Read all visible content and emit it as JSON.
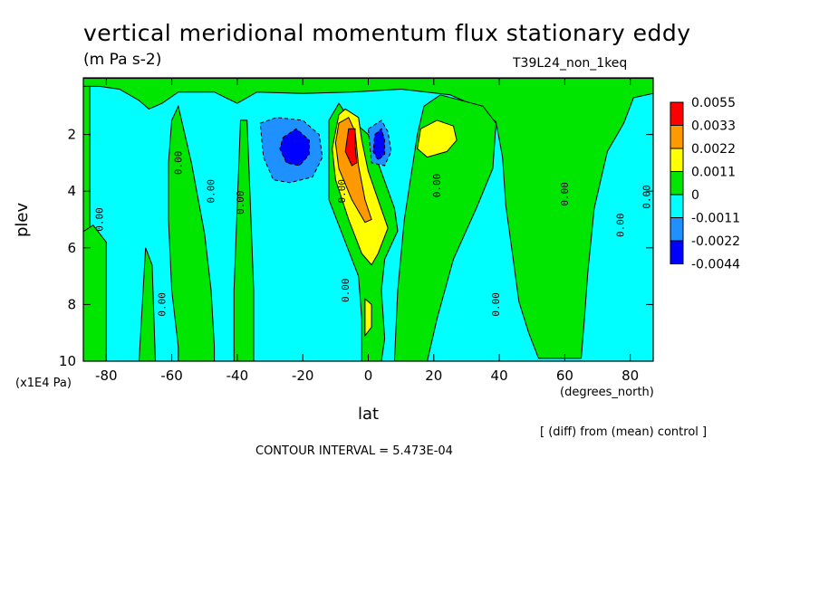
{
  "title": "vertical meridional momentum flux stationary eddy",
  "units": "(m Pa s-2)",
  "run_label": "T39L24_non_1keq",
  "x_axis_label": "lat",
  "x_axis_units": "(degrees_north)",
  "y_axis_label": "plev",
  "y_axis_units": "(x1E4 Pa)",
  "diff_note": "[ (diff) from (mean) control ]",
  "contour_interval": "CONTOUR INTERVAL = 5.473E-04",
  "contour_zero_label": "0.00",
  "chart_data": {
    "type": "heatmap",
    "title": "vertical meridional momentum flux stationary eddy",
    "subtitle": "(m Pa s-2)",
    "xlabel": "lat",
    "ylabel": "plev",
    "xlim": [
      -87,
      87
    ],
    "ylim": [
      0,
      10
    ],
    "y_inverted": true,
    "x_ticks": [
      -80,
      -60,
      -40,
      -20,
      0,
      20,
      40,
      60,
      80
    ],
    "x_tick_labels": [
      "-80",
      "-60",
      "-40",
      "-20",
      "0",
      "20",
      "40",
      "60",
      "80"
    ],
    "y_ticks": [
      2,
      4,
      6,
      8,
      10
    ],
    "y_tick_labels": [
      "2",
      "4",
      "6",
      "8",
      "10"
    ],
    "colorbar": {
      "position": "right",
      "levels": [
        "0.0055",
        "0.0033",
        "0.0022",
        "0.0011",
        "0",
        "-0.0011",
        "-0.0022",
        "-0.0044"
      ],
      "colors": [
        "#ff0000",
        "#ff9900",
        "#ffff00",
        "#00e600",
        "#00ffff",
        "#1e90ff",
        "#0000ff"
      ]
    },
    "background_color": "#00ffff",
    "regions": [
      {
        "level": "0",
        "color": "#00e600",
        "points": [
          [
            -87,
            0.02
          ],
          [
            -60,
            0.02
          ],
          [
            -30,
            0.02
          ],
          [
            0,
            0.02
          ],
          [
            30,
            0.02
          ],
          [
            60,
            0.02
          ],
          [
            87,
            0.02
          ],
          [
            87,
            0.55
          ],
          [
            81,
            0.7
          ],
          [
            78,
            1.6
          ],
          [
            73,
            2.6
          ],
          [
            69,
            4.6
          ],
          [
            67,
            6.9
          ],
          [
            66,
            8.5
          ],
          [
            65,
            9.9
          ],
          [
            52,
            9.9
          ],
          [
            49,
            9
          ],
          [
            46,
            7.9
          ],
          [
            44,
            6.2
          ],
          [
            42,
            4.5
          ],
          [
            41,
            2.8
          ],
          [
            39,
            1.55
          ],
          [
            33,
            1.0
          ],
          [
            25,
            0.6
          ],
          [
            10,
            0.4
          ],
          [
            -5,
            0.5
          ],
          [
            -20,
            0.55
          ],
          [
            -34,
            0.5
          ],
          [
            -40,
            0.9
          ],
          [
            -47,
            0.5
          ],
          [
            -58,
            0.5
          ],
          [
            -63,
            0.9
          ],
          [
            -67,
            1.1
          ],
          [
            -70,
            0.8
          ],
          [
            -76,
            0.4
          ],
          [
            -82,
            0.3
          ],
          [
            -87,
            0.3
          ]
        ]
      },
      {
        "level": "0",
        "color": "#00e600",
        "points": [
          [
            -87,
            0.3
          ],
          [
            -85,
            0.3
          ],
          [
            -85,
            10
          ],
          [
            -87,
            10
          ]
        ]
      },
      {
        "level": "0",
        "color": "#00e600",
        "points": [
          [
            -88,
            5.5
          ],
          [
            -84,
            5.2
          ],
          [
            -80,
            5.8
          ],
          [
            -80,
            10
          ],
          [
            -88,
            10
          ]
        ]
      },
      {
        "level": "0",
        "color": "#00e600",
        "points": [
          [
            -68,
            6.0
          ],
          [
            -66,
            6.6
          ],
          [
            -65,
            10
          ],
          [
            -70,
            10
          ]
        ]
      },
      {
        "level": "0",
        "color": "#00e600",
        "points": [
          [
            -58,
            1.0
          ],
          [
            -54,
            3.0
          ],
          [
            -50,
            5.5
          ],
          [
            -48,
            7.5
          ],
          [
            -47,
            9.5
          ],
          [
            -47,
            10
          ],
          [
            -58,
            10
          ],
          [
            -58,
            9.5
          ],
          [
            -60,
            7.5
          ],
          [
            -61,
            5.0
          ],
          [
            -61,
            3.0
          ],
          [
            -60,
            1.5
          ]
        ]
      },
      {
        "level": "0",
        "color": "#00e600",
        "points": [
          [
            -37,
            1.5
          ],
          [
            -36,
            4.5
          ],
          [
            -35,
            7.5
          ],
          [
            -35,
            10
          ],
          [
            -41,
            10
          ],
          [
            -41,
            7.5
          ],
          [
            -40,
            4.5
          ],
          [
            -39,
            1.5
          ]
        ]
      },
      {
        "level": "0",
        "color": "#00e600",
        "points": [
          [
            -9,
            0.9
          ],
          [
            -6,
            1.4
          ],
          [
            0,
            2.0
          ],
          [
            3,
            3.0
          ],
          [
            8,
            4.6
          ],
          [
            9,
            5.4
          ],
          [
            5,
            6.4
          ],
          [
            4,
            7.5
          ],
          [
            5,
            9.2
          ],
          [
            4,
            10
          ],
          [
            -2,
            10
          ],
          [
            -2,
            8.5
          ],
          [
            -3,
            7.0
          ],
          [
            -7,
            5.8
          ],
          [
            -12,
            4.3
          ],
          [
            -12,
            2.7
          ],
          [
            -12,
            1.5
          ]
        ]
      },
      {
        "level": "0",
        "color": "#00e600",
        "points": [
          [
            22,
            0.6
          ],
          [
            35,
            1.0
          ],
          [
            39,
            1.6
          ],
          [
            38,
            3.2
          ],
          [
            33,
            4.6
          ],
          [
            26,
            6.4
          ],
          [
            21,
            8.5
          ],
          [
            18,
            10
          ],
          [
            8,
            10
          ],
          [
            9,
            7.5
          ],
          [
            11,
            5.0
          ],
          [
            13,
            3.5
          ],
          [
            15,
            2.0
          ],
          [
            17,
            1.0
          ]
        ]
      },
      {
        "level": "0.0011",
        "color": "#ffff00",
        "points": [
          [
            -9,
            1.3
          ],
          [
            -7,
            1.1
          ],
          [
            -3,
            1.4
          ],
          [
            -2,
            2.2
          ],
          [
            0,
            3.3
          ],
          [
            3,
            4.3
          ],
          [
            6,
            5.3
          ],
          [
            3,
            6.2
          ],
          [
            1,
            6.6
          ],
          [
            -2,
            6.2
          ],
          [
            -6,
            5.0
          ],
          [
            -10,
            3.6
          ],
          [
            -11,
            2.5
          ]
        ]
      },
      {
        "level": "0.0011",
        "color": "#ffff00",
        "points": [
          [
            -1,
            7.8
          ],
          [
            1,
            8.0
          ],
          [
            1,
            8.8
          ],
          [
            -1,
            9.1
          ]
        ]
      },
      {
        "level": "0.0011",
        "color": "#ffff00",
        "points": [
          [
            16,
            1.8
          ],
          [
            21,
            1.5
          ],
          [
            26,
            1.7
          ],
          [
            27,
            2.2
          ],
          [
            24,
            2.6
          ],
          [
            18,
            2.8
          ],
          [
            15,
            2.5
          ]
        ]
      },
      {
        "level": "0.0022",
        "color": "#ff9900",
        "points": [
          [
            -9,
            1.6
          ],
          [
            -6,
            1.4
          ],
          [
            -4,
            1.9
          ],
          [
            -3,
            3.1
          ],
          [
            -1,
            4.3
          ],
          [
            1,
            5.0
          ],
          [
            -1,
            5.1
          ],
          [
            -5,
            4.3
          ],
          [
            -9,
            3.2
          ],
          [
            -10,
            2.3
          ]
        ]
      },
      {
        "level": "0.0033",
        "color": "#ff0000",
        "points": [
          [
            -6,
            1.8
          ],
          [
            -4,
            1.8
          ],
          [
            -4,
            2.4
          ],
          [
            -3.5,
            3.0
          ],
          [
            -5,
            3.1
          ],
          [
            -7,
            2.6
          ]
        ]
      },
      {
        "level": "-0.0011",
        "color": "#1e90ff",
        "points": [
          [
            -33,
            1.6
          ],
          [
            -28,
            1.4
          ],
          [
            -20,
            1.5
          ],
          [
            -15,
            2.0
          ],
          [
            -14,
            2.8
          ],
          [
            -17,
            3.5
          ],
          [
            -24,
            3.7
          ],
          [
            -29,
            3.6
          ],
          [
            -32,
            2.8
          ]
        ]
      },
      {
        "level": "-0.0011",
        "color": "#1e90ff",
        "points": [
          [
            0,
            1.8
          ],
          [
            4,
            1.5
          ],
          [
            6,
            1.9
          ],
          [
            7,
            2.6
          ],
          [
            5,
            3.1
          ],
          [
            1,
            3.0
          ]
        ]
      },
      {
        "level": "-0.0022",
        "color": "#0000ff",
        "points": [
          [
            -26,
            2.1
          ],
          [
            -22,
            1.8
          ],
          [
            -18,
            2.2
          ],
          [
            -18,
            2.7
          ],
          [
            -21,
            3.1
          ],
          [
            -25,
            3.0
          ],
          [
            -27,
            2.5
          ]
        ]
      },
      {
        "level": "-0.0022",
        "color": "#0000ff",
        "points": [
          [
            2,
            2.0
          ],
          [
            4,
            1.8
          ],
          [
            5,
            2.2
          ],
          [
            5,
            2.7
          ],
          [
            3,
            2.9
          ],
          [
            1.5,
            2.6
          ]
        ]
      }
    ],
    "contour_labels": [
      {
        "x": -81,
        "y": 5.0,
        "text": "0.00"
      },
      {
        "x": -62,
        "y": 8.0,
        "text": "0.00"
      },
      {
        "x": -57,
        "y": 3.0,
        "text": "0.00"
      },
      {
        "x": -47,
        "y": 4.0,
        "text": "0.00"
      },
      {
        "x": -38,
        "y": 4.4,
        "text": "0.00"
      },
      {
        "x": -7,
        "y": 4.0,
        "text": "0.00"
      },
      {
        "x": -6,
        "y": 7.5,
        "text": "0.00"
      },
      {
        "x": 22,
        "y": 3.8,
        "text": "0.00"
      },
      {
        "x": 40,
        "y": 8.0,
        "text": "0.00"
      },
      {
        "x": 61,
        "y": 4.1,
        "text": "0.00"
      },
      {
        "x": 78,
        "y": 5.2,
        "text": "0.00"
      },
      {
        "x": 86,
        "y": 4.2,
        "text": "0.00"
      }
    ]
  }
}
